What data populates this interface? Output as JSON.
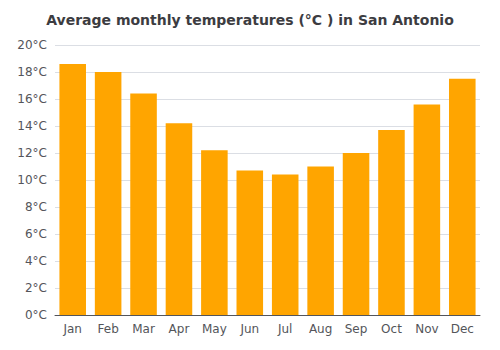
{
  "chart_data": {
    "type": "bar",
    "title": "Average monthly temperatures (°C ) in San Antonio",
    "categories": [
      "Jan",
      "Feb",
      "Mar",
      "Apr",
      "May",
      "Jun",
      "Jul",
      "Aug",
      "Sep",
      "Oct",
      "Nov",
      "Dec"
    ],
    "values": [
      18.6,
      18.0,
      16.4,
      14.2,
      12.2,
      10.7,
      10.4,
      11.0,
      12.0,
      13.7,
      15.6,
      17.5
    ],
    "color": "#FFA500",
    "ylim": [
      0,
      20
    ],
    "yticks": [
      {
        "value": 0,
        "label": "0°C"
      },
      {
        "value": 2,
        "label": "2°C"
      },
      {
        "value": 4,
        "label": "4°C"
      },
      {
        "value": 6,
        "label": "6°C"
      },
      {
        "value": 8,
        "label": "8°C"
      },
      {
        "value": 10,
        "label": "10°C"
      },
      {
        "value": 12,
        "label": "12°C"
      },
      {
        "value": 14,
        "label": "14°C"
      },
      {
        "value": 16,
        "label": "16°C"
      },
      {
        "value": 18,
        "label": "18°C"
      },
      {
        "value": 20,
        "label": "20°C"
      }
    ],
    "grid": true
  }
}
